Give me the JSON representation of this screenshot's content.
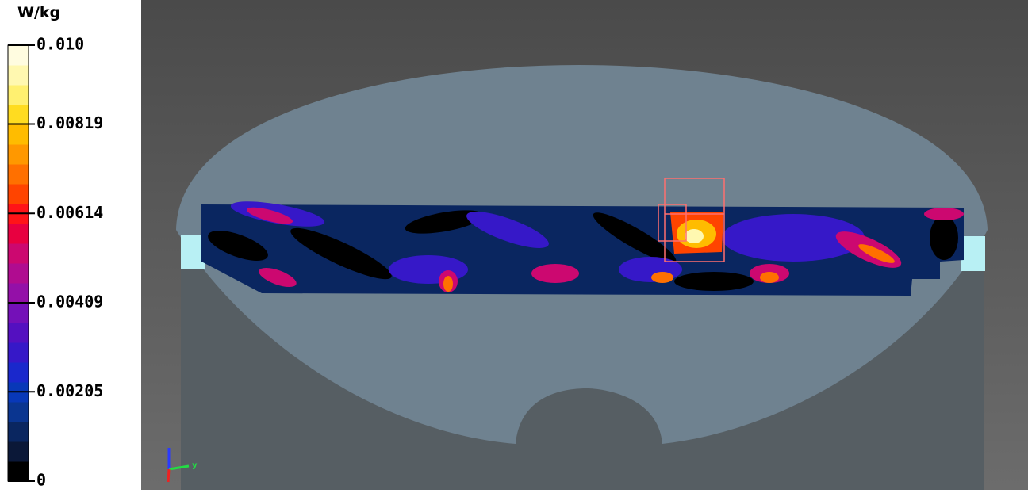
{
  "colorbar": {
    "unit": "W/kg",
    "clim": [
      0,
      0.01
    ],
    "ticks": [
      0,
      0.00205,
      0.00409,
      0.00614,
      0.00819,
      {
        "value": 0.01,
        "label": "0.010"
      }
    ],
    "colors": [
      "#000000",
      "#0b1838",
      "#0a2660",
      "#0a3590",
      "#0838b8",
      "#1a28cc",
      "#3618c8",
      "#5410c0",
      "#7410b8",
      "#9410a8",
      "#b00c90",
      "#cc0870",
      "#e80040",
      "#ff1418",
      "#ff4400",
      "#ff7000",
      "#ff9800",
      "#ffbc00",
      "#ffdc20",
      "#fff070",
      "#fff8b0",
      "#fffce0"
    ]
  },
  "viewer": {
    "axis_label": "y"
  }
}
